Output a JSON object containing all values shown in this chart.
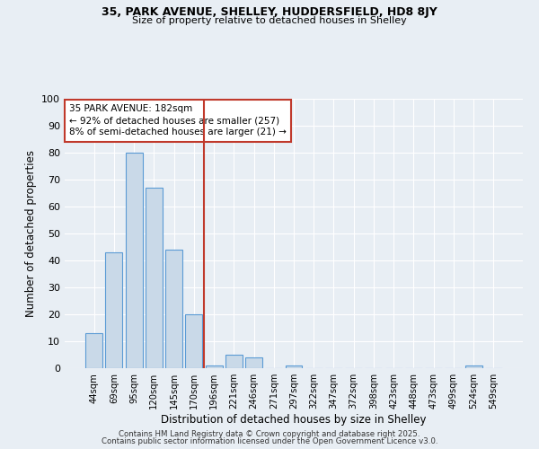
{
  "title1": "35, PARK AVENUE, SHELLEY, HUDDERSFIELD, HD8 8JY",
  "title2": "Size of property relative to detached houses in Shelley",
  "xlabel": "Distribution of detached houses by size in Shelley",
  "ylabel": "Number of detached properties",
  "categories": [
    "44sqm",
    "69sqm",
    "95sqm",
    "120sqm",
    "145sqm",
    "170sqm",
    "196sqm",
    "221sqm",
    "246sqm",
    "271sqm",
    "297sqm",
    "322sqm",
    "347sqm",
    "372sqm",
    "398sqm",
    "423sqm",
    "448sqm",
    "473sqm",
    "499sqm",
    "524sqm",
    "549sqm"
  ],
  "values": [
    13,
    43,
    80,
    67,
    44,
    20,
    1,
    5,
    4,
    0,
    1,
    0,
    0,
    0,
    0,
    0,
    0,
    0,
    0,
    1,
    0
  ],
  "bar_color": "#c9d9e8",
  "bar_edge_color": "#5b9bd5",
  "vline_x": 5.5,
  "vline_color": "#c0392b",
  "annotation_text": "35 PARK AVENUE: 182sqm\n← 92% of detached houses are smaller (257)\n8% of semi-detached houses are larger (21) →",
  "annotation_box_color": "#ffffff",
  "annotation_box_edge": "#c0392b",
  "ylim": [
    0,
    100
  ],
  "yticks": [
    0,
    10,
    20,
    30,
    40,
    50,
    60,
    70,
    80,
    90,
    100
  ],
  "background_color": "#e8eef4",
  "grid_color": "#ffffff",
  "footer1": "Contains HM Land Registry data © Crown copyright and database right 2025.",
  "footer2": "Contains public sector information licensed under the Open Government Licence v3.0."
}
